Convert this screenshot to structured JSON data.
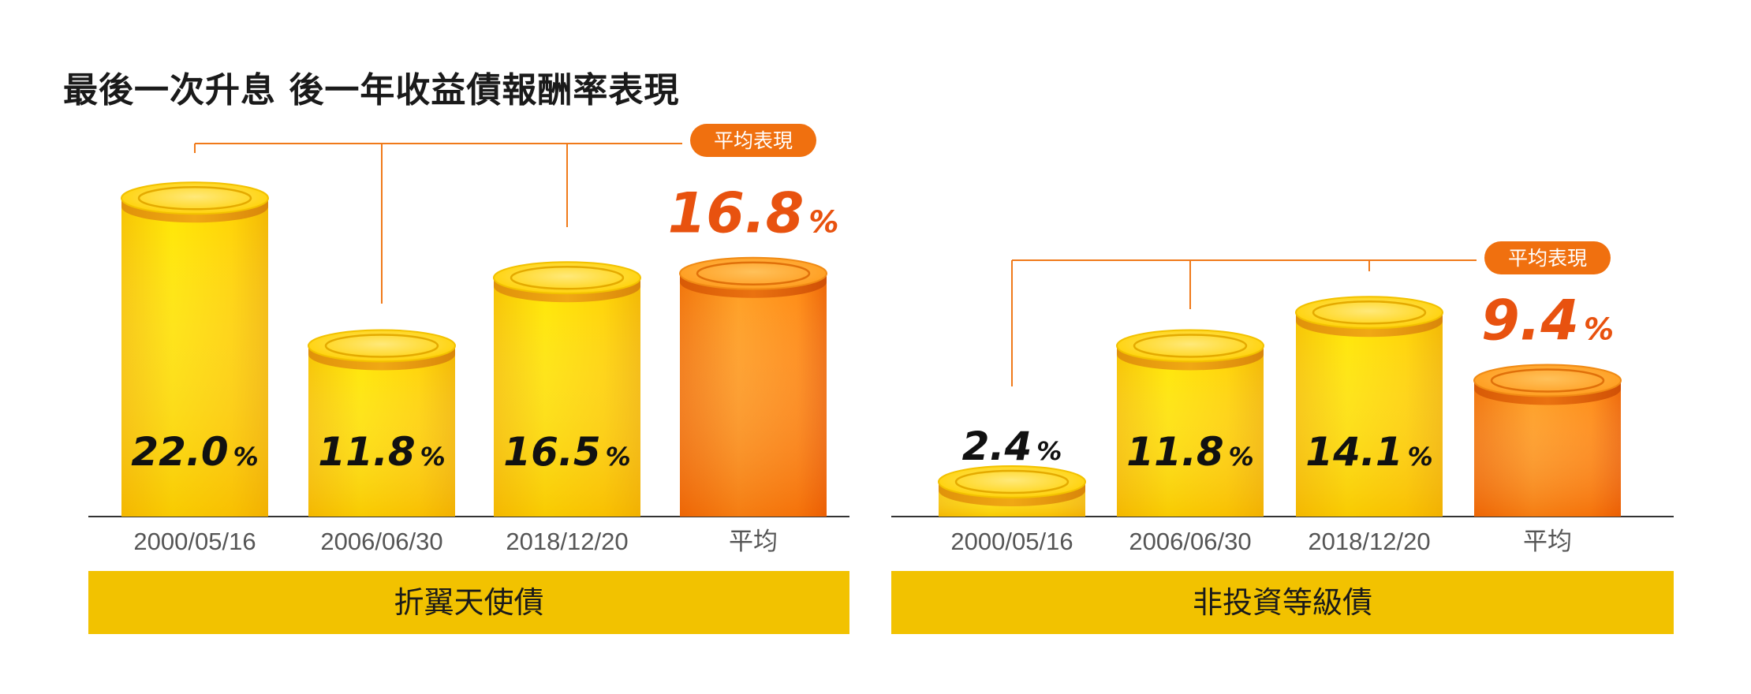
{
  "title": "最後一次升息  後一年收益債報酬率表現",
  "colors": {
    "gold_top": "#ffe000",
    "gold_bottom": "#f4b800",
    "orange_top": "#ff9a1a",
    "orange_bottom": "#f06a05",
    "accent": "#e8520f",
    "band": "#f2c200",
    "line": "#f07a1a"
  },
  "chart_data": [
    {
      "type": "bar",
      "group_label": "折翼天使債",
      "categories": [
        "2000/05/16",
        "2006/06/30",
        "2018/12/20",
        "平均"
      ],
      "values": [
        22.0,
        11.8,
        16.5,
        16.8
      ],
      "value_labels": [
        "22.0",
        "11.8",
        "16.5",
        "16.8"
      ],
      "unit": "%",
      "average_badge": "平均表現",
      "highlight_index": 3
    },
    {
      "type": "bar",
      "group_label": "非投資等級債",
      "categories": [
        "2000/05/16",
        "2006/06/30",
        "2018/12/20",
        "平均"
      ],
      "values": [
        2.4,
        11.8,
        14.1,
        9.4
      ],
      "value_labels": [
        "2.4",
        "11.8",
        "14.1",
        "9.4"
      ],
      "unit": "%",
      "average_badge": "平均表現",
      "highlight_index": 3
    }
  ]
}
